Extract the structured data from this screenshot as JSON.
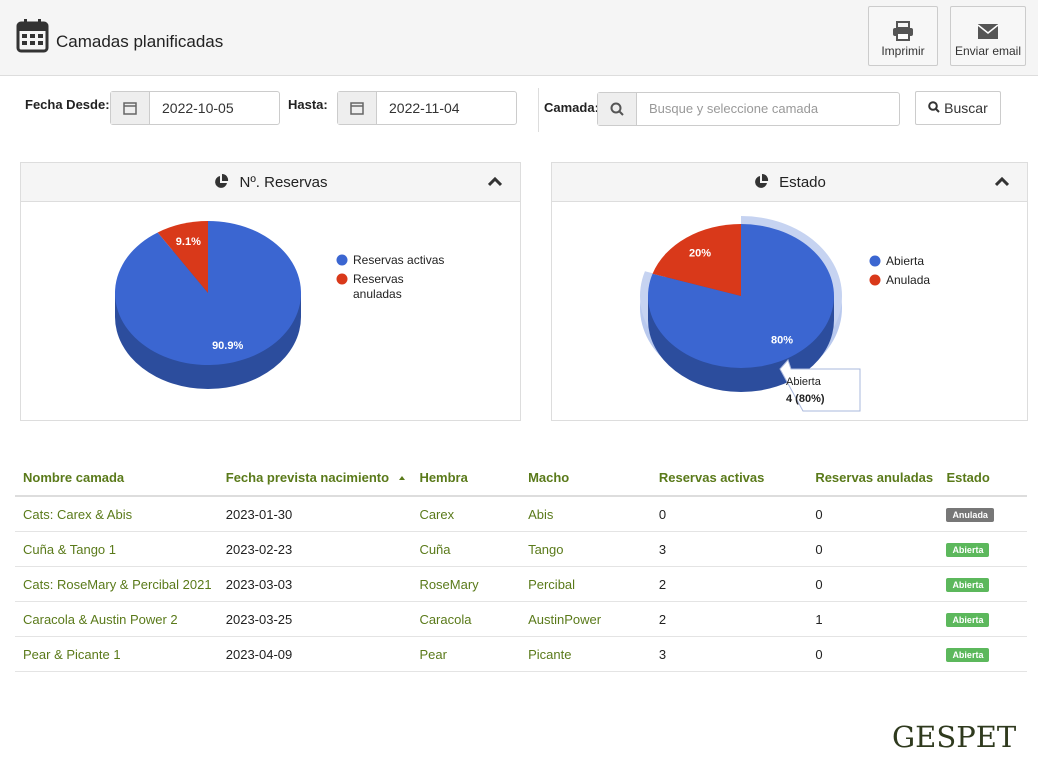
{
  "header": {
    "title": "Camadas planificadas",
    "print_button": "Imprimir",
    "email_button": "Enviar email"
  },
  "filters": {
    "from_label": "Fecha Desde:",
    "from_value": "2022-10-05",
    "to_label": "Hasta:",
    "to_value": "2022-11-04",
    "litter_label": "Camada:",
    "litter_placeholder": "Busque y seleccione camada",
    "search_button": "Buscar"
  },
  "chart_data": [
    {
      "type": "pie",
      "title": "Nº. Reservas",
      "categories": [
        "Reservas activas",
        "Reservas anuladas"
      ],
      "values": [
        90.9,
        9.1
      ],
      "value_labels": [
        "90.9%",
        "9.1%"
      ],
      "colors": [
        "#3b66d1",
        "#d9391a"
      ]
    },
    {
      "type": "pie",
      "title": "Estado",
      "categories": [
        "Abierta",
        "Anulada"
      ],
      "values": [
        80,
        20
      ],
      "value_labels": [
        "80%",
        "20%"
      ],
      "colors": [
        "#3b66d1",
        "#d9391a"
      ],
      "tooltip": "4 (80%)"
    }
  ],
  "table": {
    "columns": [
      "Nombre camada",
      "Fecha prevista nacimiento",
      "Hembra",
      "Macho",
      "Reservas activas",
      "Reservas anuladas",
      "Estado"
    ],
    "rows": [
      [
        "Cats: Carex & Abis",
        "2023-01-30",
        "Carex",
        "Abis",
        0,
        0,
        "Anulada"
      ],
      [
        "Cuña & Tango 1",
        "2023-02-23",
        "Cuña",
        "Tango",
        3,
        0,
        "Abierta"
      ],
      [
        "Cats: RoseMary & Percibal 2021",
        "2023-03-03",
        "RoseMary",
        "Percibal",
        2,
        0,
        "Abierta"
      ],
      [
        "Caracola & Austin Power 2",
        "2023-03-25",
        "Caracola",
        "AustinPower",
        2,
        1,
        "Abierta"
      ],
      [
        "Pear & Picante 1",
        "2023-04-09",
        "Pear",
        "Picante",
        3,
        0,
        "Abierta"
      ]
    ]
  },
  "logo": "GESPET"
}
